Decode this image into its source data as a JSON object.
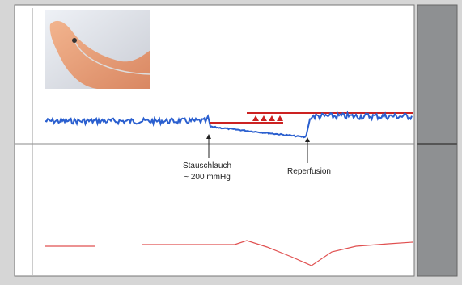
{
  "annotations": {
    "occlusion": {
      "line1": "Stauschlauch",
      "line2": "~ 200 mmHg"
    },
    "reperfusion": "Reperfusion"
  }
}
